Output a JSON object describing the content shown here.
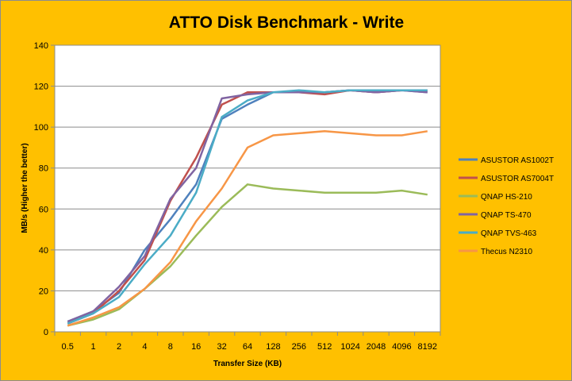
{
  "chart_data": {
    "type": "line",
    "title": "ATTO Disk Benchmark - Write",
    "xlabel": "Transfer Size (KB)",
    "ylabel": "MB/s (Higher the better)",
    "ylim": [
      0,
      140
    ],
    "yticks": [
      0,
      20,
      40,
      60,
      80,
      100,
      120,
      140
    ],
    "grid": "horizontal",
    "legend_position": "right",
    "categories": [
      "0.5",
      "1",
      "2",
      "4",
      "8",
      "16",
      "32",
      "64",
      "128",
      "256",
      "512",
      "1024",
      "2048",
      "4096",
      "8192"
    ],
    "series": [
      {
        "name": "ASUSTOR AS1002T",
        "color": "#4f81bd",
        "values": [
          5,
          10,
          19,
          40,
          55,
          72,
          104,
          111,
          117,
          117,
          117,
          118,
          117,
          118,
          117
        ]
      },
      {
        "name": "ASUSTOR AS7004T",
        "color": "#c0504d",
        "values": [
          4,
          9,
          20,
          35,
          64,
          85,
          111,
          117,
          117,
          117,
          116,
          118,
          117,
          118,
          118
        ]
      },
      {
        "name": "QNAP HS-210",
        "color": "#9bbb59",
        "values": [
          3,
          6,
          11,
          21,
          32,
          47,
          61,
          72,
          70,
          69,
          68,
          68,
          68,
          69,
          67
        ]
      },
      {
        "name": "QNAP TS-470",
        "color": "#8064a2",
        "values": [
          5,
          10,
          22,
          37,
          65,
          80,
          114,
          116,
          117,
          117,
          117,
          118,
          117,
          118,
          117
        ]
      },
      {
        "name": "QNAP TVS-463",
        "color": "#4bacc6",
        "values": [
          4,
          9,
          17,
          33,
          47,
          68,
          105,
          113,
          117,
          118,
          117,
          118,
          118,
          118,
          118
        ]
      },
      {
        "name": "Thecus N2310",
        "color": "#f79646",
        "values": [
          3,
          7,
          12,
          21,
          34,
          54,
          70,
          90,
          96,
          97,
          98,
          97,
          96,
          96,
          98
        ]
      }
    ]
  }
}
